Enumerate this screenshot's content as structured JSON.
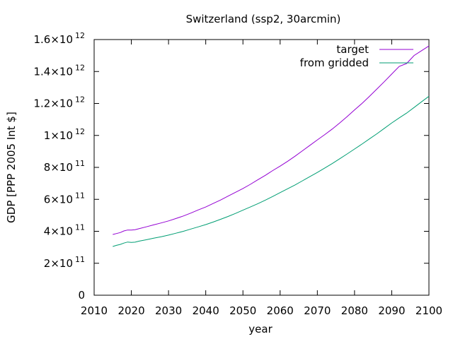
{
  "chart_data": {
    "type": "line",
    "title": "Switzerland (ssp2, 30arcmin)",
    "xlabel": "year",
    "ylabel": "GDP [PPP 2005 Int $]",
    "xlim": [
      2010,
      2100
    ],
    "ylim": [
      0,
      1600000000000.0
    ],
    "grid": false,
    "legend_position": "top-right",
    "x_ticks": [
      2010,
      2020,
      2030,
      2040,
      2050,
      2060,
      2070,
      2080,
      2090,
      2100
    ],
    "y_ticks": [
      {
        "value": 0,
        "mantissa": "0",
        "exponent": ""
      },
      {
        "value": 200000000000.0,
        "mantissa": "2×10",
        "exponent": "11"
      },
      {
        "value": 400000000000.0,
        "mantissa": "4×10",
        "exponent": "11"
      },
      {
        "value": 600000000000.0,
        "mantissa": "6×10",
        "exponent": "11"
      },
      {
        "value": 800000000000.0,
        "mantissa": "8×10",
        "exponent": "11"
      },
      {
        "value": 1000000000000.0,
        "mantissa": "1×10",
        "exponent": "12"
      },
      {
        "value": 1200000000000.0,
        "mantissa": "1.2×10",
        "exponent": "12"
      },
      {
        "value": 1400000000000.0,
        "mantissa": "1.4×10",
        "exponent": "12"
      },
      {
        "value": 1600000000000.0,
        "mantissa": "1.6×10",
        "exponent": "12"
      }
    ],
    "series": [
      {
        "name": "target",
        "color": "#9400d3",
        "x": [
          2015,
          2016,
          2017,
          2018,
          2019,
          2020,
          2021,
          2022,
          2024,
          2026,
          2028,
          2030,
          2032,
          2034,
          2036,
          2038,
          2040,
          2042,
          2044,
          2046,
          2048,
          2050,
          2052,
          2054,
          2056,
          2058,
          2060,
          2062,
          2064,
          2066,
          2068,
          2070,
          2072,
          2074,
          2076,
          2078,
          2080,
          2082,
          2084,
          2086,
          2088,
          2090,
          2092,
          2094,
          2096,
          2098,
          2100
        ],
        "values": [
          380000000000.0,
          386000000000.0,
          392000000000.0,
          402000000000.0,
          408000000000.0,
          408000000000.0,
          410000000000.0,
          416000000000.0,
          428000000000.0,
          440000000000.0,
          452000000000.0,
          465000000000.0,
          480000000000.0,
          496000000000.0,
          514000000000.0,
          534000000000.0,
          552000000000.0,
          574000000000.0,
          596000000000.0,
          620000000000.0,
          644000000000.0,
          668000000000.0,
          694000000000.0,
          722000000000.0,
          750000000000.0,
          780000000000.0,
          808000000000.0,
          838000000000.0,
          870000000000.0,
          904000000000.0,
          938000000000.0,
          972000000000.0,
          1005000000000.0,
          1040000000000.0,
          1078000000000.0,
          1118000000000.0,
          1160000000000.0,
          1200000000000.0,
          1244000000000.0,
          1290000000000.0,
          1336000000000.0,
          1384000000000.0,
          1432000000000.0,
          1450000000000.0,
          1500000000000.0,
          1530000000000.0,
          1560000000000.0
        ]
      },
      {
        "name": "from gridded",
        "color": "#009e73",
        "x": [
          2015,
          2016,
          2017,
          2018,
          2019,
          2020,
          2021,
          2022,
          2024,
          2026,
          2028,
          2030,
          2032,
          2034,
          2036,
          2038,
          2040,
          2042,
          2044,
          2046,
          2048,
          2050,
          2052,
          2054,
          2056,
          2058,
          2060,
          2062,
          2064,
          2066,
          2068,
          2070,
          2072,
          2074,
          2076,
          2078,
          2080,
          2082,
          2084,
          2086,
          2088,
          2090,
          2092,
          2094,
          2096,
          2098,
          2100
        ],
        "values": [
          305000000000.0,
          312000000000.0,
          318000000000.0,
          326000000000.0,
          333000000000.0,
          330000000000.0,
          332000000000.0,
          338000000000.0,
          347000000000.0,
          357000000000.0,
          366000000000.0,
          376000000000.0,
          388000000000.0,
          400000000000.0,
          414000000000.0,
          428000000000.0,
          442000000000.0,
          458000000000.0,
          475000000000.0,
          493000000000.0,
          512000000000.0,
          532000000000.0,
          552000000000.0,
          573000000000.0,
          595000000000.0,
          618000000000.0,
          642000000000.0,
          666000000000.0,
          690000000000.0,
          716000000000.0,
          742000000000.0,
          768000000000.0,
          796000000000.0,
          824000000000.0,
          854000000000.0,
          884000000000.0,
          915000000000.0,
          946000000000.0,
          978000000000.0,
          1010000000000.0,
          1044000000000.0,
          1078000000000.0,
          1110000000000.0,
          1140000000000.0,
          1175000000000.0,
          1210000000000.0,
          1245000000000.0
        ]
      }
    ]
  }
}
